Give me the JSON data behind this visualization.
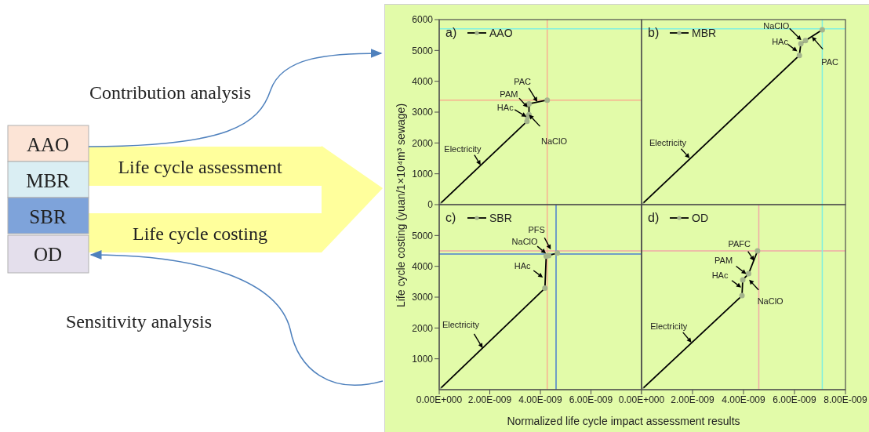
{
  "chart_data": [
    {
      "type": "line",
      "title": "a)",
      "ylabel": "Life cycle costing (yuan/1×10⁴m³ sewage)",
      "x": [
        0,
        3.47e-09,
        3.49e-09,
        3.55e-09,
        3.55e-09,
        4.27e-09
      ],
      "series": [
        {
          "name": "AAO",
          "color": "#000000",
          "values": [
            0,
            2700,
            2850,
            2920,
            3270,
            3390
          ]
        }
      ],
      "xlim": [
        0,
        8e-09
      ],
      "ylim": [
        0,
        6000
      ],
      "yticks": [
        0,
        1000,
        2000,
        3000,
        4000,
        5000,
        6000
      ],
      "tick_labels": "y",
      "legend": "top left",
      "marker": "circle",
      "ref_lines": [
        {
          "axis": "y",
          "value": 3390,
          "color": "#f8b090"
        },
        {
          "axis": "x",
          "value": 4.27e-09,
          "color": "#f8b090"
        },
        {
          "axis": "y",
          "value": 5700,
          "color": "#80f0e0"
        }
      ],
      "annotations": [
        {
          "text": "Electricity",
          "x": 1.64e-09,
          "y": 1280
        },
        {
          "text": "HAc",
          "x": 3.45e-09,
          "y": 2850
        },
        {
          "text": "PAM",
          "x": 3.5e-09,
          "y": 3150
        },
        {
          "text": "PAC",
          "x": 3.88e-09,
          "y": 3330
        },
        {
          "text": "NaClO",
          "x": 3.55e-09,
          "y": 2920
        }
      ]
    },
    {
      "type": "line",
      "title": "b)",
      "x": [
        0,
        6.19e-09,
        6.25e-09,
        6.43e-09,
        7.09e-09
      ],
      "series": [
        {
          "name": "MBR",
          "color": "#000000",
          "values": [
            0,
            4840,
            5220,
            5320,
            5670
          ]
        }
      ],
      "xlim": [
        0,
        8e-09
      ],
      "ylim": [
        0,
        6000
      ],
      "tick_labels": false,
      "legend": "top left",
      "marker": "circle",
      "ref_lines": [
        {
          "axis": "y",
          "value": 5700,
          "color": "#80f0e0"
        },
        {
          "axis": "x",
          "value": 7.09e-09,
          "color": "#80f0e0"
        }
      ],
      "annotations": [
        {
          "text": "Electricity",
          "x": 1.89e-09,
          "y": 1505
        },
        {
          "text": "NaClO",
          "x": 6.27e-09,
          "y": 5330
        },
        {
          "text": "HAc",
          "x": 6.11e-09,
          "y": 4970
        },
        {
          "text": "PAC",
          "x": 6.68e-09,
          "y": 5450
        }
      ]
    },
    {
      "type": "line",
      "title": "c)",
      "xlabel": "Normalized life cycle impact assessment results",
      "x": [
        0,
        4.18e-09,
        4.23e-09,
        4.33e-09,
        4.67e-09
      ],
      "series": [
        {
          "name": "SBR",
          "color": "#000000",
          "values": [
            0,
            3290,
            4330,
            4350,
            4430
          ]
        }
      ],
      "xlim": [
        0,
        8e-09
      ],
      "ylim": [
        0,
        6000
      ],
      "xticks": [
        {
          "value": 0,
          "label": "0.00E+000"
        },
        {
          "value": 2e-09,
          "label": "2.00E-009"
        },
        {
          "value": 4e-09,
          "label": "4.00E-009"
        },
        {
          "value": 6e-09,
          "label": "6.00E-009"
        },
        {
          "value": 8e-09,
          "label": null
        }
      ],
      "yticks": [
        1000,
        2000,
        3000,
        4000,
        5000
      ],
      "legend": "top left",
      "marker": "circle",
      "ref_lines": [
        {
          "axis": "x",
          "value": 4.27e-09,
          "color": "#f8b090"
        },
        {
          "axis": "y",
          "value": 4500,
          "color": "#f0a8a8"
        },
        {
          "axis": "y",
          "value": 4400,
          "color": "#4a7fd0"
        },
        {
          "axis": "x",
          "value": 4.62e-09,
          "color": "#4a7fd0"
        }
      ],
      "annotations": [
        {
          "text": "Electricity",
          "x": 1.72e-09,
          "y": 1350
        },
        {
          "text": "HAc",
          "x": 4.1e-09,
          "y": 3635
        },
        {
          "text": "NaClO",
          "x": 4.22e-09,
          "y": 4420
        },
        {
          "text": "PFS",
          "x": 4.41e-09,
          "y": 4545
        }
      ]
    },
    {
      "type": "line",
      "title": "d)",
      "x": [
        0,
        3.94e-09,
        3.97e-09,
        4.2e-09,
        4.55e-09
      ],
      "series": [
        {
          "name": "OD",
          "color": "#000000",
          "values": [
            0,
            3050,
            3560,
            3760,
            4500
          ]
        }
      ],
      "xlim": [
        0,
        8e-09
      ],
      "ylim": [
        0,
        6000
      ],
      "xticks": [
        {
          "value": 0,
          "label": "0.00E+000"
        },
        {
          "value": 2e-09,
          "label": "2.00E-009"
        },
        {
          "value": 4e-09,
          "label": "4.00E-009"
        },
        {
          "value": 6e-09,
          "label": "6.00E-009"
        },
        {
          "value": 8e-09,
          "label": "8.00E-009"
        }
      ],
      "tick_labels": "x",
      "legend": "top left",
      "marker": "circle",
      "ref_lines": [
        {
          "axis": "y",
          "value": 4500,
          "color": "#f0a8a8"
        },
        {
          "axis": "x",
          "value": 4.6e-09,
          "color": "#f0a8a8"
        },
        {
          "axis": "x",
          "value": 7.09e-09,
          "color": "#80f0e0"
        }
      ],
      "annotations": [
        {
          "text": "Electricity",
          "x": 1.96e-09,
          "y": 1528
        },
        {
          "text": "PAFC",
          "x": 4.42e-09,
          "y": 4178
        },
        {
          "text": "PAM",
          "x": 4.11e-09,
          "y": 3750
        },
        {
          "text": "HAc",
          "x": 3.91e-09,
          "y": 3312
        },
        {
          "text": "NaClO",
          "x": 4.22e-09,
          "y": 3567
        }
      ]
    },
    {
      "type": "other",
      "annotations": [
        "AAO",
        "MBR",
        "SBR",
        "OD",
        "Life cycle assessment",
        "Life cycle costing",
        "Contribution analysis",
        "Sensitivity analysis"
      ]
    }
  ]
}
